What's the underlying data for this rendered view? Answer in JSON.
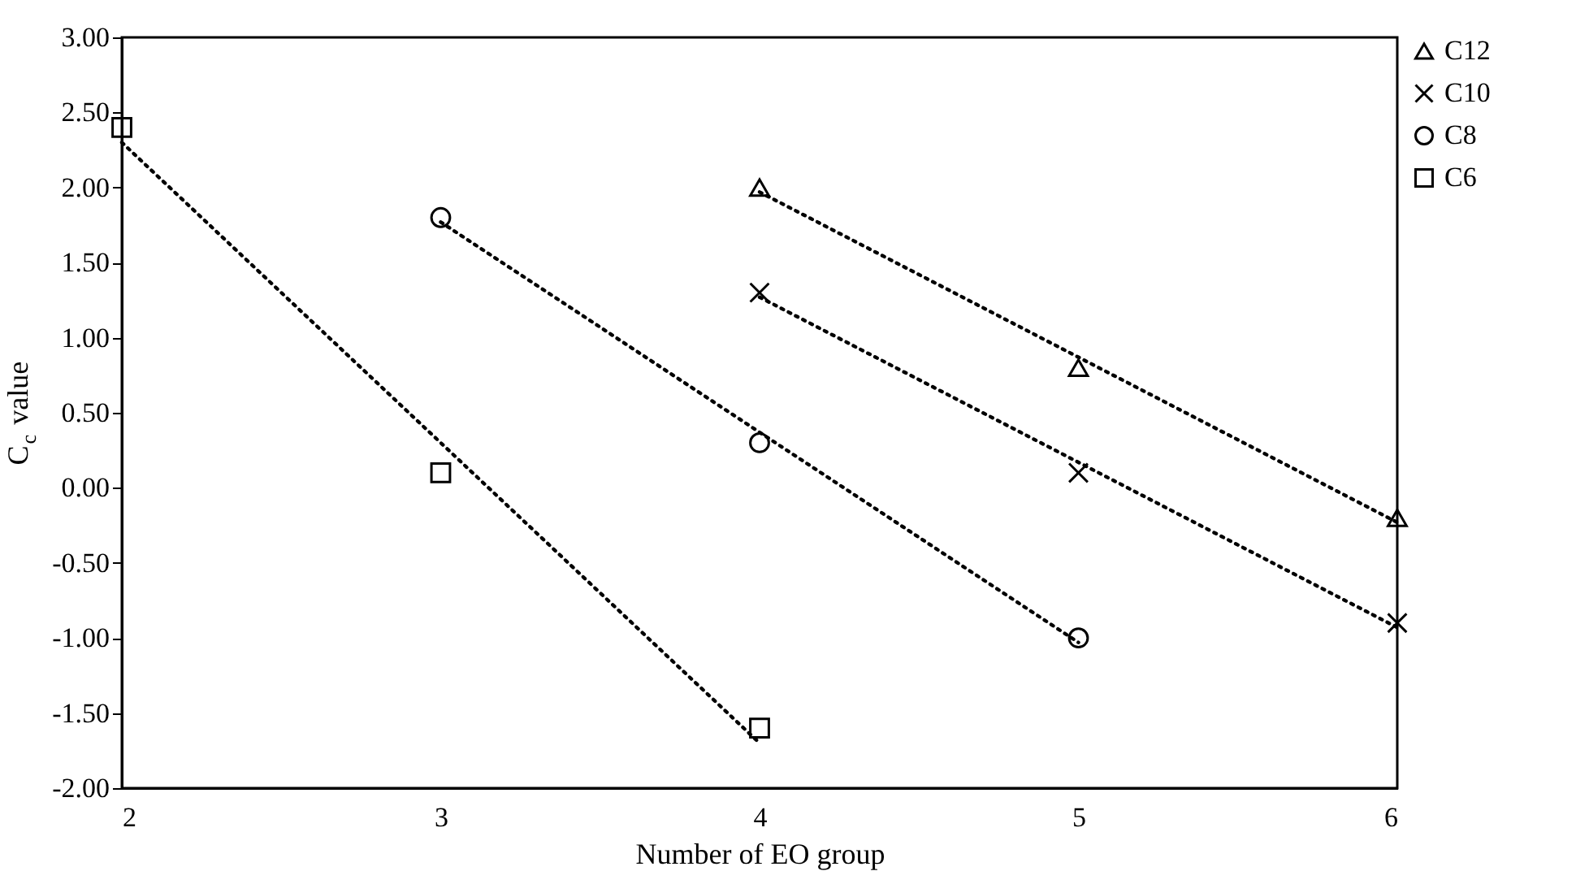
{
  "chart_data": {
    "type": "scatter",
    "xlabel": "Number of EO group",
    "ylabel": "C$_{c}$ value",
    "xlim": [
      2,
      6
    ],
    "xticks": [
      2,
      3,
      4,
      5,
      6
    ],
    "ylim": [
      -2,
      3
    ],
    "yticks": [
      {
        "value": -2,
        "label": "-2.00"
      },
      {
        "value": -1.5,
        "label": "-1.50"
      },
      {
        "value": -1,
        "label": "-1.00"
      },
      {
        "value": -0.5,
        "label": "-0.50"
      },
      {
        "value": 0,
        "label": "0.00"
      },
      {
        "value": 0.5,
        "label": "0.50"
      },
      {
        "value": 1,
        "label": "1.00"
      },
      {
        "value": 1.5,
        "label": "1.50"
      },
      {
        "value": 2,
        "label": "2.00"
      },
      {
        "value": 2.5,
        "label": "2.50"
      },
      {
        "value": 3,
        "label": "3.00"
      }
    ],
    "grid": false,
    "legend": "right",
    "series": [
      {
        "name": "C12",
        "type": "scatter",
        "marker": "triangle",
        "color": "#000000",
        "x": [
          4,
          5,
          6
        ],
        "values": [
          2.0,
          0.8,
          -0.2
        ]
      },
      {
        "name": "C10",
        "type": "scatter",
        "marker": "cross",
        "color": "#000000",
        "x": [
          4,
          5,
          6
        ],
        "values": [
          1.3,
          0.1,
          -0.9
        ]
      },
      {
        "name": "C8",
        "type": "scatter",
        "marker": "circle",
        "color": "#000000",
        "x": [
          3,
          4,
          5
        ],
        "values": [
          1.8,
          0.3,
          -1.0
        ]
      },
      {
        "name": "C6",
        "type": "scatter",
        "marker": "square",
        "color": "#000000",
        "x": [
          2,
          3,
          4
        ],
        "values": [
          2.4,
          0.1,
          -1.6
        ]
      },
      {
        "type": "line",
        "line_style": "dotted",
        "color": "#000000",
        "x": [
          4,
          6
        ],
        "values": [
          1.97,
          -0.23
        ]
      },
      {
        "type": "line",
        "line_style": "dotted",
        "color": "#000000",
        "x": [
          4,
          6
        ],
        "values": [
          1.27,
          -0.93
        ]
      },
      {
        "type": "line",
        "line_style": "dotted",
        "color": "#000000",
        "x": [
          3,
          5
        ],
        "values": [
          1.77,
          -1.03
        ]
      },
      {
        "type": "line",
        "line_style": "dotted",
        "color": "#000000",
        "x": [
          2,
          4
        ],
        "values": [
          2.3,
          -1.7
        ]
      }
    ]
  }
}
